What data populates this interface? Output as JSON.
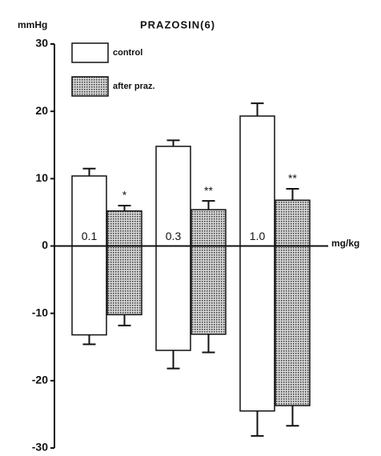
{
  "chart_data": {
    "type": "floating-bar",
    "title": "PRAZOSIN(6)",
    "y_label": "mmHg",
    "x_label": "mg/kg",
    "categories": [
      "0.1",
      "0.3",
      "1.0"
    ],
    "significance": [
      "*",
      "**",
      "**"
    ],
    "series": [
      {
        "name": "control",
        "color": "#ffffff",
        "pattern": false,
        "values": [
          10.4,
          14.8,
          19.3
        ],
        "errors": [
          1.1,
          0.9,
          1.9
        ],
        "low": [
          -13.2,
          -15.5,
          -24.5
        ],
        "low_errors": [
          1.4,
          2.7,
          3.7
        ]
      },
      {
        "name": "after praz.",
        "color": "#9a9a9a",
        "pattern": true,
        "values": [
          5.2,
          5.4,
          6.8
        ],
        "errors": [
          0.8,
          1.3,
          1.7
        ],
        "low": [
          -10.2,
          -13.1,
          -23.7
        ],
        "low_errors": [
          1.6,
          2.7,
          3.0
        ]
      }
    ],
    "ylim": [
      -30,
      30
    ],
    "yticks": [
      -30,
      -20,
      -10,
      0,
      10,
      20,
      30
    ]
  }
}
